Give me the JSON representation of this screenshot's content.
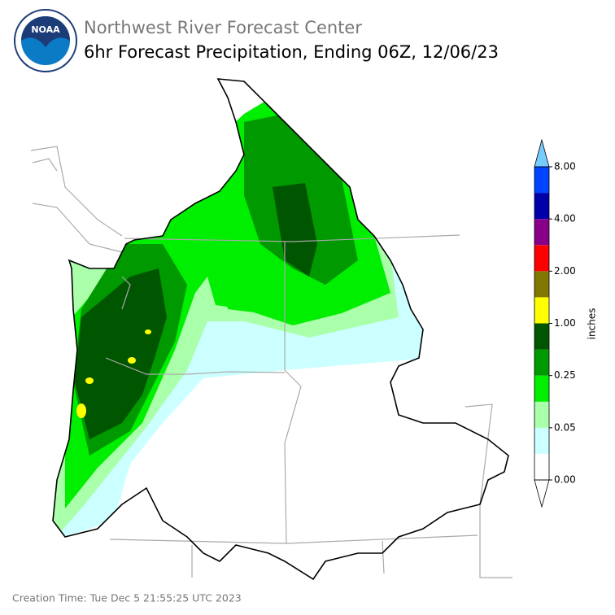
{
  "header": {
    "agency": "NOAA",
    "title": "Northwest River Forecast Center",
    "subtitle": "6hr Forecast Precipitation, Ending 06Z, 12/06/23"
  },
  "colorbar": {
    "label": "inches",
    "colors": [
      "#ffffff",
      "#ccffff",
      "#aaffaa",
      "#00ee00",
      "#009900",
      "#005500",
      "#ffff00",
      "#807800",
      "#ff0000",
      "#880088",
      "#0000aa",
      "#0044ff"
    ],
    "over_color": "#77ccff",
    "under_color": "#ffffff",
    "ticks": [
      "0.00",
      "0.05",
      "0.25",
      "1.00",
      "2.00",
      "4.00",
      "8.00"
    ]
  },
  "footer": {
    "creation_time": "Creation Time: Tue Dec 5 21:55:25 UTC 2023"
  }
}
